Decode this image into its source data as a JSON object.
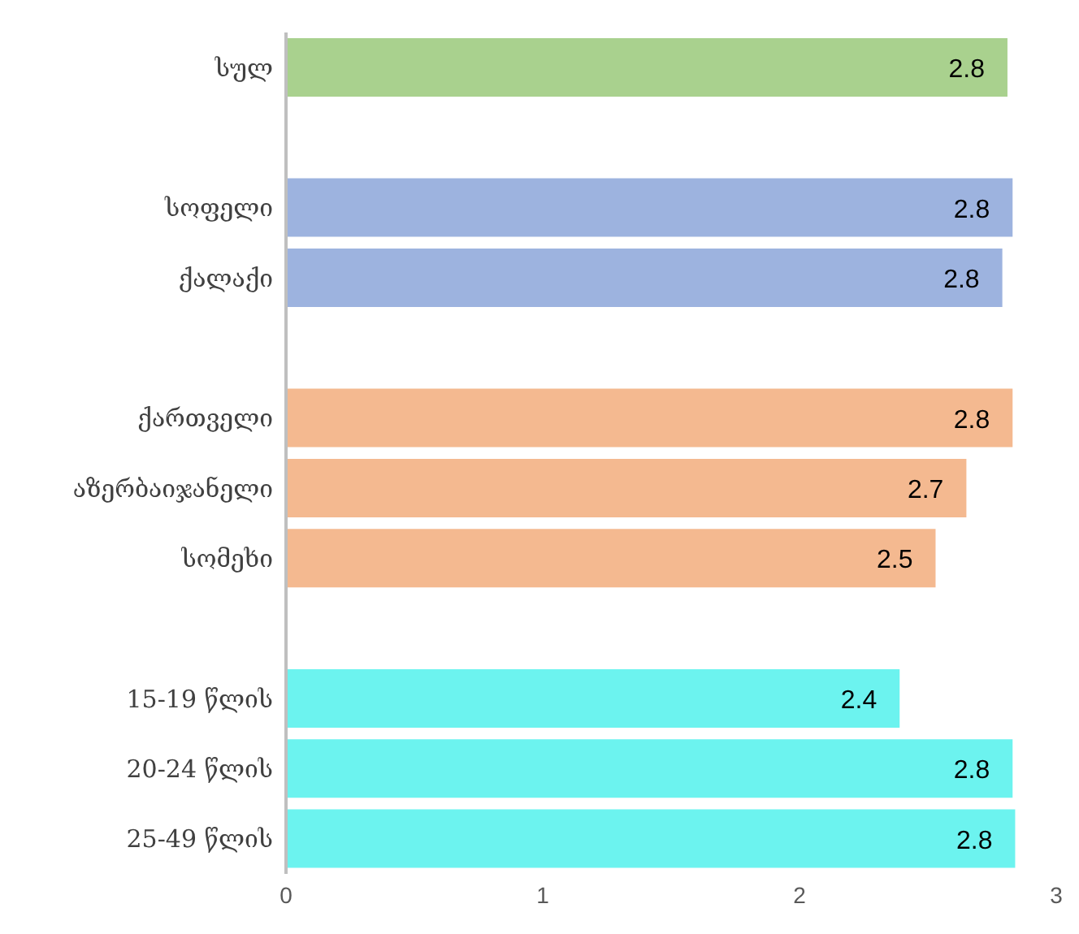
{
  "chart_data": {
    "type": "bar",
    "orientation": "horizontal",
    "categories": [
      "სულ",
      null,
      "სოფელი",
      "ქალაქი",
      null,
      "ქართველი",
      "აზერბაიჯანელი",
      "სომეხი",
      null,
      "15-19 წლის",
      "20-24 წლის",
      "25-49 წლის"
    ],
    "values": [
      2.81,
      null,
      2.83,
      2.79,
      null,
      2.83,
      2.65,
      2.53,
      null,
      2.39,
      2.83,
      2.84
    ],
    "value_labels": [
      "2.8",
      null,
      "2.8",
      "2.8",
      null,
      "2.8",
      "2.7",
      "2.5",
      null,
      "2.4",
      "2.8",
      "2.8"
    ],
    "colors": [
      "#a9d18e",
      null,
      "#9db3df",
      "#9db3df",
      null,
      "#f4b990",
      "#f4b990",
      "#f4b990",
      null,
      "#6cf3ef",
      "#6cf3ef",
      "#6cf3ef"
    ],
    "xlim": [
      0,
      3
    ],
    "xticks": [
      0,
      1,
      2,
      3
    ],
    "grid": false
  }
}
